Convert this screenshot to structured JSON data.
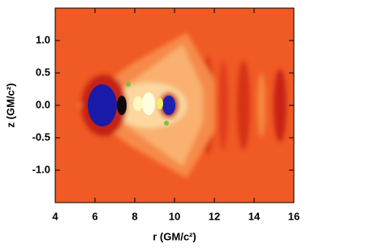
{
  "chart_data": {
    "type": "contour",
    "xlabel": "r (GM/c²)",
    "ylabel": "z (GM/c²)",
    "xlim": [
      4,
      16
    ],
    "ylim": [
      -1.5,
      1.5
    ],
    "xticks": [
      4,
      6,
      8,
      10,
      12,
      14,
      16
    ],
    "yticks": [
      {
        "value": -1.0,
        "label": "-1.0"
      },
      -0.5,
      {
        "value": 0.0,
        "label": "0.0"
      },
      0.5,
      {
        "value": 1.0,
        "label": "1.0"
      }
    ],
    "color": "#f05a24"
  }
}
